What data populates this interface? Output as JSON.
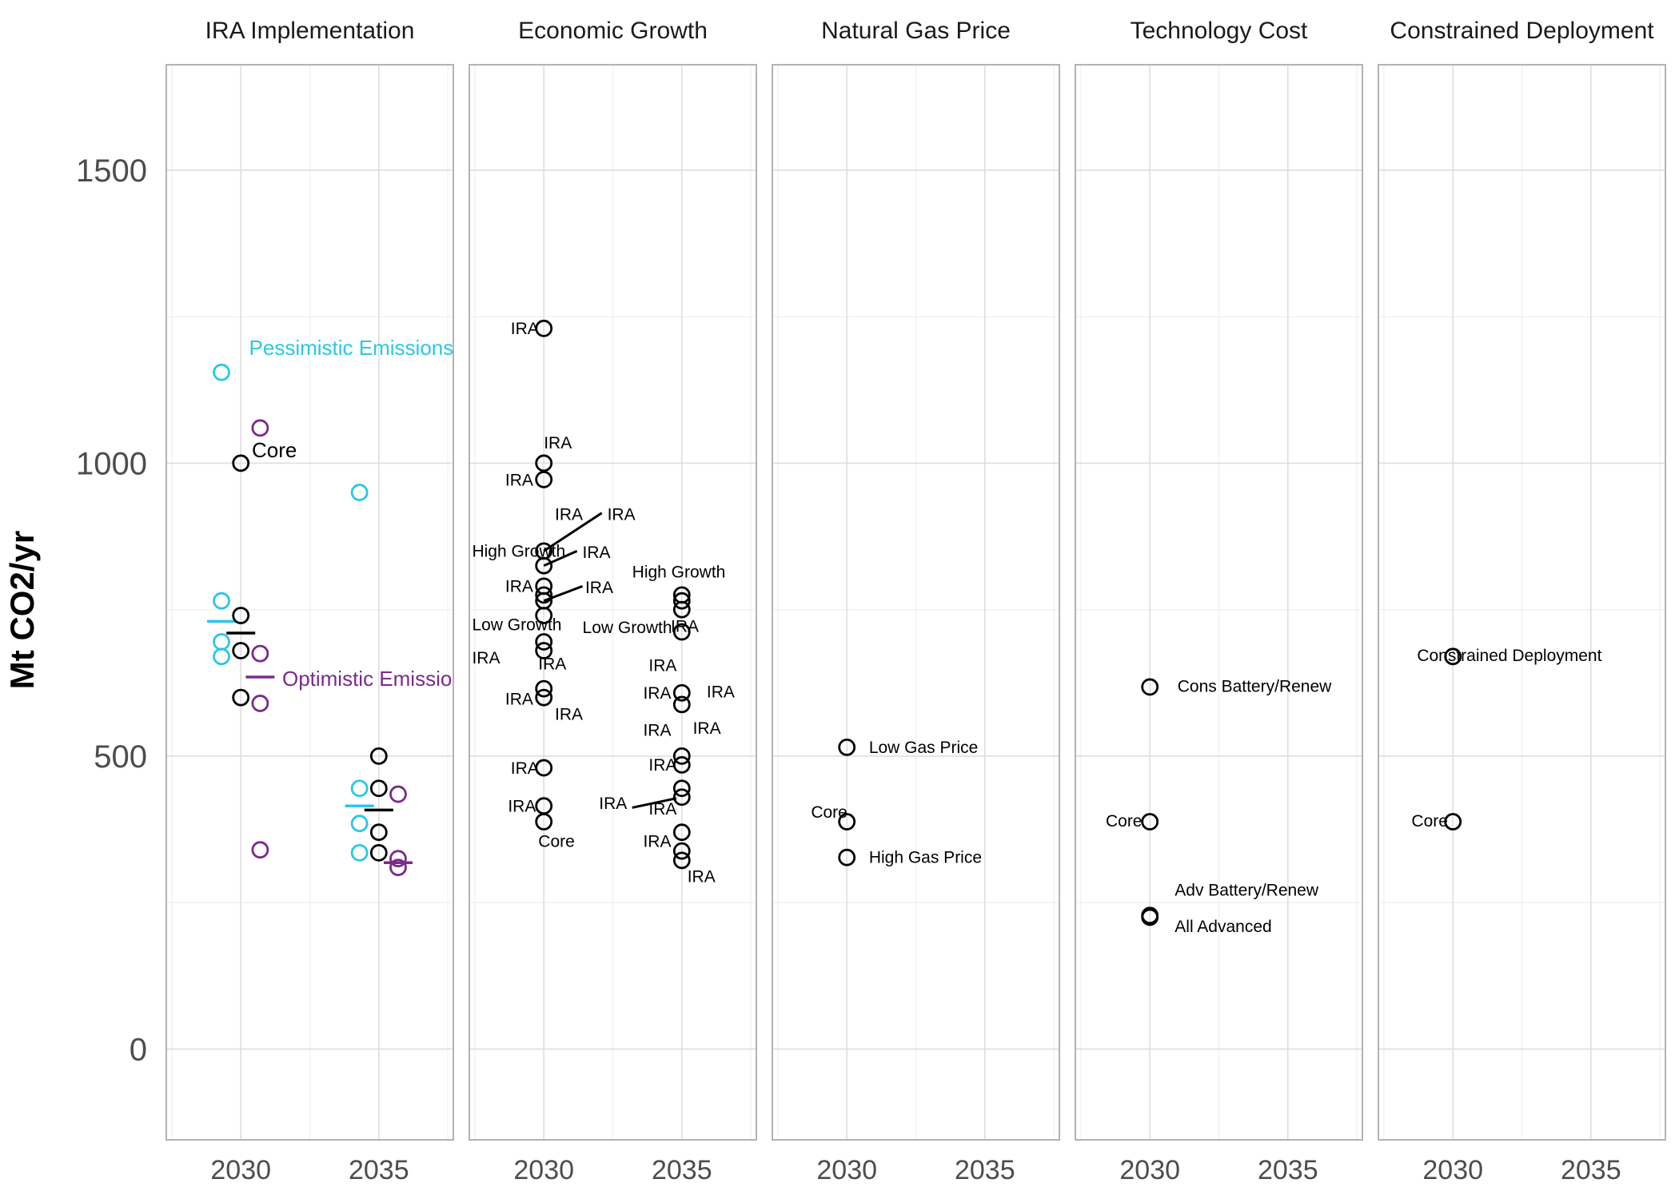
{
  "chart_data": {
    "type": "scatter",
    "ylabel": "Mt CO2/yr",
    "xlabel": "",
    "ylim": [
      -155,
      1680
    ],
    "xlim": [
      2027.3,
      2037.7
    ],
    "y_ticks": [
      0,
      500,
      1000,
      1500
    ],
    "x_ticks": [
      2030,
      2035
    ],
    "grid": true,
    "colors": {
      "core": "#000000",
      "pessimistic": "#29c8e6",
      "optimistic": "#7b2a8c"
    },
    "panels": [
      {
        "title": "IRA Implementation",
        "points": [
          {
            "x": 2029.3,
            "y": 1155,
            "group": "pessimistic"
          },
          {
            "x": 2029.3,
            "y": 765,
            "group": "pessimistic"
          },
          {
            "x": 2029.3,
            "y": 695,
            "group": "pessimistic"
          },
          {
            "x": 2029.3,
            "y": 670,
            "group": "pessimistic"
          },
          {
            "x": 2030.0,
            "y": 1000,
            "group": "core"
          },
          {
            "x": 2030.0,
            "y": 740,
            "group": "core"
          },
          {
            "x": 2030.0,
            "y": 680,
            "group": "core"
          },
          {
            "x": 2030.0,
            "y": 600,
            "group": "core"
          },
          {
            "x": 2030.7,
            "y": 1060,
            "group": "optimistic"
          },
          {
            "x": 2030.7,
            "y": 675,
            "group": "optimistic"
          },
          {
            "x": 2030.7,
            "y": 590,
            "group": "optimistic"
          },
          {
            "x": 2030.7,
            "y": 340,
            "group": "optimistic"
          },
          {
            "x": 2034.3,
            "y": 950,
            "group": "pessimistic"
          },
          {
            "x": 2034.3,
            "y": 445,
            "group": "pessimistic"
          },
          {
            "x": 2034.3,
            "y": 385,
            "group": "pessimistic"
          },
          {
            "x": 2034.3,
            "y": 335,
            "group": "pessimistic"
          },
          {
            "x": 2035.0,
            "y": 500,
            "group": "core"
          },
          {
            "x": 2035.0,
            "y": 445,
            "group": "core"
          },
          {
            "x": 2035.0,
            "y": 370,
            "group": "core"
          },
          {
            "x": 2035.0,
            "y": 335,
            "group": "core"
          },
          {
            "x": 2035.7,
            "y": 435,
            "group": "optimistic"
          },
          {
            "x": 2035.7,
            "y": 325,
            "group": "optimistic"
          },
          {
            "x": 2035.7,
            "y": 310,
            "group": "optimistic"
          }
        ],
        "means": [
          {
            "x": 2029.3,
            "y": 730,
            "group": "pessimistic"
          },
          {
            "x": 2030.0,
            "y": 710,
            "group": "core"
          },
          {
            "x": 2030.7,
            "y": 635,
            "group": "optimistic"
          },
          {
            "x": 2034.3,
            "y": 415,
            "group": "pessimistic"
          },
          {
            "x": 2035.0,
            "y": 408,
            "group": "core"
          },
          {
            "x": 2035.7,
            "y": 318,
            "group": "optimistic"
          }
        ],
        "labels": [
          {
            "text": "Pessimistic Emissions",
            "x": 2030.3,
            "y": 1185,
            "group": "pessimistic",
            "cls": "grp-label",
            "clip": true
          },
          {
            "text": "Core",
            "x": 2030.4,
            "y": 1010,
            "group": "core",
            "cls": "grp-label"
          },
          {
            "text": "Optimistic Emissions",
            "x": 2031.5,
            "y": 620,
            "group": "optimistic",
            "cls": "grp-label",
            "clip": true
          }
        ],
        "leaders": []
      },
      {
        "title": "Economic Growth",
        "points": [
          {
            "x": 2030,
            "y": 1230
          },
          {
            "x": 2030,
            "y": 1000
          },
          {
            "x": 2030,
            "y": 972
          },
          {
            "x": 2030,
            "y": 850
          },
          {
            "x": 2030,
            "y": 825
          },
          {
            "x": 2030,
            "y": 790
          },
          {
            "x": 2030,
            "y": 775
          },
          {
            "x": 2030,
            "y": 765
          },
          {
            "x": 2030,
            "y": 740
          },
          {
            "x": 2030,
            "y": 695
          },
          {
            "x": 2030,
            "y": 680
          },
          {
            "x": 2030,
            "y": 615
          },
          {
            "x": 2030,
            "y": 600
          },
          {
            "x": 2030,
            "y": 480
          },
          {
            "x": 2030,
            "y": 415
          },
          {
            "x": 2030,
            "y": 388
          },
          {
            "x": 2035,
            "y": 775
          },
          {
            "x": 2035,
            "y": 765
          },
          {
            "x": 2035,
            "y": 750
          },
          {
            "x": 2035,
            "y": 712
          },
          {
            "x": 2035,
            "y": 608
          },
          {
            "x": 2035,
            "y": 588
          },
          {
            "x": 2035,
            "y": 500
          },
          {
            "x": 2035,
            "y": 485
          },
          {
            "x": 2035,
            "y": 445
          },
          {
            "x": 2035,
            "y": 430
          },
          {
            "x": 2035,
            "y": 370
          },
          {
            "x": 2035,
            "y": 338
          },
          {
            "x": 2035,
            "y": 322
          }
        ],
        "means": [],
        "labels": [
          {
            "text": "IRA",
            "x": 2028.8,
            "y": 1220
          },
          {
            "text": "IRA",
            "x": 2030.0,
            "y": 1025
          },
          {
            "text": "IRA",
            "x": 2028.6,
            "y": 962
          },
          {
            "text": "IRA",
            "x": 2030.4,
            "y": 903
          },
          {
            "text": "IRA",
            "x": 2032.3,
            "y": 903
          },
          {
            "text": "High Growth",
            "x": 2027.4,
            "y": 840
          },
          {
            "text": "IRA",
            "x": 2031.4,
            "y": 838
          },
          {
            "text": "IRA",
            "x": 2028.6,
            "y": 780
          },
          {
            "text": "IRA",
            "x": 2031.5,
            "y": 778
          },
          {
            "text": "Low Growth",
            "x": 2027.4,
            "y": 715
          },
          {
            "text": "Low Growth",
            "x": 2031.4,
            "y": 710
          },
          {
            "text": "IRA",
            "x": 2027.4,
            "y": 658
          },
          {
            "text": "IRA",
            "x": 2029.8,
            "y": 648
          },
          {
            "text": "IRA",
            "x": 2028.6,
            "y": 588
          },
          {
            "text": "IRA",
            "x": 2030.4,
            "y": 562
          },
          {
            "text": "IRA",
            "x": 2028.8,
            "y": 470
          },
          {
            "text": "IRA",
            "x": 2028.7,
            "y": 405
          },
          {
            "text": "Core",
            "x": 2029.8,
            "y": 345
          },
          {
            "text": "High Growth",
            "x": 2033.2,
            "y": 805
          },
          {
            "text": "IRA",
            "x": 2034.6,
            "y": 712
          },
          {
            "text": "IRA",
            "x": 2033.8,
            "y": 645
          },
          {
            "text": "IRA",
            "x": 2033.6,
            "y": 598
          },
          {
            "text": "IRA",
            "x": 2035.9,
            "y": 600
          },
          {
            "text": "IRA",
            "x": 2033.6,
            "y": 535
          },
          {
            "text": "IRA",
            "x": 2035.4,
            "y": 538
          },
          {
            "text": "IRA",
            "x": 2033.8,
            "y": 475
          },
          {
            "text": "IRA",
            "x": 2032.0,
            "y": 410
          },
          {
            "text": "IRA",
            "x": 2033.8,
            "y": 400
          },
          {
            "text": "IRA",
            "x": 2033.6,
            "y": 345
          },
          {
            "text": "IRA",
            "x": 2035.2,
            "y": 285
          }
        ],
        "leaders": [
          {
            "x1": 2030.0,
            "y1": 850,
            "x2": 2032.1,
            "y2": 915
          },
          {
            "x1": 2030.0,
            "y1": 825,
            "x2": 2031.2,
            "y2": 850
          },
          {
            "x1": 2030.0,
            "y1": 765,
            "x2": 2031.4,
            "y2": 790
          },
          {
            "x1": 2033.2,
            "y1": 412,
            "x2": 2034.8,
            "y2": 428
          }
        ]
      },
      {
        "title": "Natural Gas Price",
        "points": [
          {
            "x": 2030,
            "y": 515
          },
          {
            "x": 2030,
            "y": 388
          },
          {
            "x": 2030,
            "y": 327
          }
        ],
        "means": [],
        "labels": [
          {
            "text": "Low Gas Price",
            "x": 2030.8,
            "y": 505
          },
          {
            "text": "Core",
            "x": 2028.7,
            "y": 395
          },
          {
            "text": "High Gas Price",
            "x": 2030.8,
            "y": 318
          }
        ],
        "leaders": []
      },
      {
        "title": "Technology Cost",
        "points": [
          {
            "x": 2030,
            "y": 618
          },
          {
            "x": 2030,
            "y": 388
          },
          {
            "x": 2030,
            "y": 228
          },
          {
            "x": 2030,
            "y": 225
          }
        ],
        "means": [],
        "labels": [
          {
            "text": "Cons Battery/Renew",
            "x": 2031.0,
            "y": 610
          },
          {
            "text": "Core",
            "x": 2028.4,
            "y": 380
          },
          {
            "text": "Adv Battery/Renew",
            "x": 2030.9,
            "y": 262
          },
          {
            "text": "All Advanced",
            "x": 2030.9,
            "y": 200
          }
        ],
        "leaders": []
      },
      {
        "title": "Constrained Deployment",
        "points": [
          {
            "x": 2030,
            "y": 670
          },
          {
            "x": 2030,
            "y": 388
          }
        ],
        "means": [],
        "labels": [
          {
            "text": "Constrained Deployment",
            "x": 2028.7,
            "y": 662
          },
          {
            "text": "Core",
            "x": 2028.5,
            "y": 380
          }
        ],
        "leaders": []
      }
    ]
  }
}
